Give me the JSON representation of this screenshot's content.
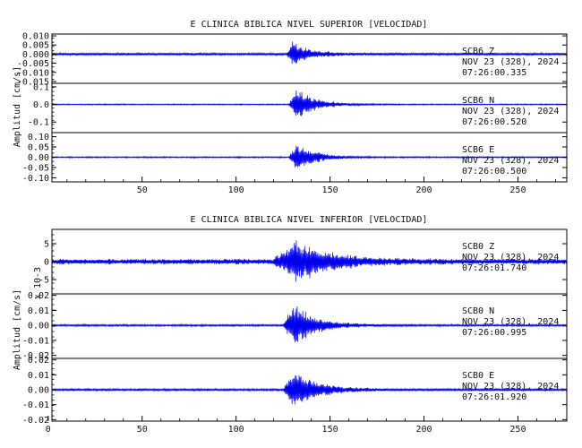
{
  "chart_data": [
    {
      "type": "line",
      "title": "E CLINICA BIBLICA NIVEL SUPERIOR [VELOCIDAD]",
      "ylabel": "Amplitud [cm/s]",
      "xlim": [
        2,
        276
      ],
      "xticks": [
        50,
        100,
        150,
        200,
        250
      ],
      "line_color": "#0000ee",
      "panels": [
        {
          "station": "SCB6",
          "component": "Z",
          "date": "NOV 23 (328), 2024",
          "time": "07:26:00.335",
          "ylim": [
            -0.016,
            0.011
          ],
          "yticks": [
            0.01,
            0.005,
            0.0,
            -0.005,
            -0.01,
            -0.015
          ],
          "ytick_labels": [
            "0.010",
            "0.005",
            "0.000",
            "-0.005",
            "-0.010",
            "-0.015"
          ],
          "noise_amplitude": 0.0008,
          "peak_amplitude": 0.0085,
          "onset": 127,
          "peak_at": 130,
          "decay": 9
        },
        {
          "station": "SCB6",
          "component": "N",
          "date": "NOV 23 (328), 2024",
          "time": "07:26:00.520",
          "ylim": [
            -0.16,
            0.12
          ],
          "yticks": [
            0.1,
            0.0,
            -0.1
          ],
          "ytick_labels": [
            "0.1",
            "0.0",
            "-0.1"
          ],
          "noise_amplitude": 0.004,
          "peak_amplitude": 0.11,
          "onset": 128,
          "peak_at": 132,
          "decay": 10
        },
        {
          "station": "SCB6",
          "component": "E",
          "date": "NOV 23 (328), 2024",
          "time": "07:26:00.500",
          "ylim": [
            -0.12,
            0.12
          ],
          "yticks": [
            0.1,
            0.05,
            0.0,
            -0.05,
            -0.1
          ],
          "ytick_labels": [
            "0.10",
            "0.05",
            "0.00",
            "-0.05",
            "-0.10"
          ],
          "noise_amplitude": 0.004,
          "peak_amplitude": 0.085,
          "onset": 128,
          "peak_at": 132,
          "decay": 10
        }
      ]
    },
    {
      "type": "line",
      "title": "E CLINICA BIBLICA NIVEL INFERIOR [VELOCIDAD]",
      "ylabel": "Amplitud [cm/s]",
      "xlim": [
        2,
        276
      ],
      "xticks": [
        0,
        50,
        100,
        150,
        200,
        250
      ],
      "line_color": "#0000ee",
      "panels": [
        {
          "station": "SCB0",
          "component": "Z",
          "date": "NOV 23 (328), 2024",
          "time": "07:26:01.740",
          "scale_label": "x 10-3",
          "ylim": [
            -9,
            9
          ],
          "yticks": [
            5,
            0,
            -5
          ],
          "ytick_labels": [
            "5",
            "0",
            "-5"
          ],
          "noise_amplitude": 0.9,
          "peak_amplitude": 7.5,
          "onset": 120,
          "peak_at": 132,
          "decay": 18
        },
        {
          "station": "SCB0",
          "component": "N",
          "date": "NOV 23 (328), 2024",
          "time": "07:26:00.995",
          "ylim": [
            -0.022,
            0.021
          ],
          "yticks": [
            0.02,
            0.01,
            0.0,
            -0.01,
            -0.02
          ],
          "ytick_labels": [
            "0.02",
            "0.01",
            "0.00",
            "-0.01",
            "-0.02"
          ],
          "noise_amplitude": 0.0008,
          "peak_amplitude": 0.017,
          "onset": 125,
          "peak_at": 131,
          "decay": 12
        },
        {
          "station": "SCB0",
          "component": "E",
          "date": "NOV 23 (328), 2024",
          "time": "07:26:01.920",
          "ylim": [
            -0.021,
            0.021
          ],
          "yticks": [
            0.02,
            0.01,
            0.0,
            -0.01,
            -0.02
          ],
          "ytick_labels": [
            "0.02",
            "0.01",
            "0.00",
            "-0.01",
            "-0.02"
          ],
          "noise_amplitude": 0.0009,
          "peak_amplitude": 0.018,
          "onset": 125,
          "peak_at": 131,
          "decay": 12
        }
      ]
    }
  ]
}
